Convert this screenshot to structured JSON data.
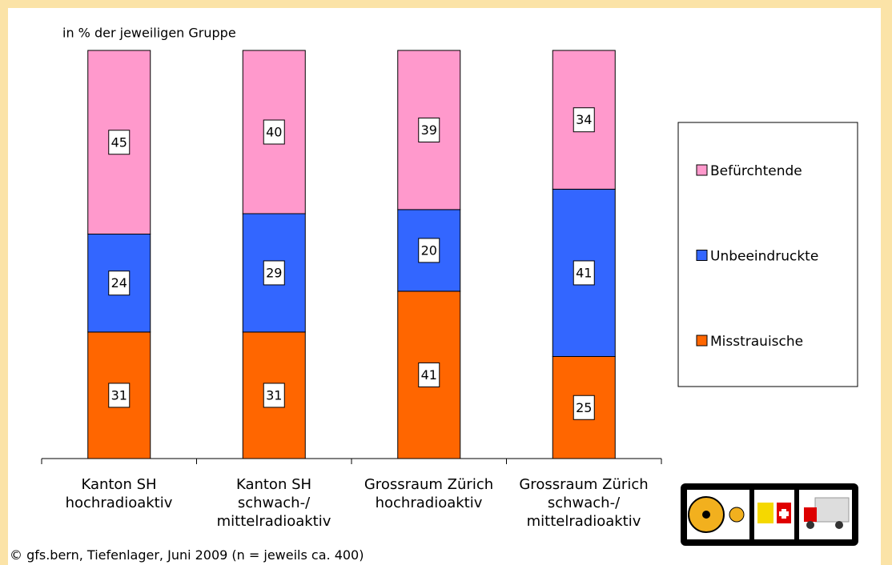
{
  "chart_data": {
    "type": "stacked_bar",
    "subtitle": "in % der jeweiligen Gruppe",
    "categories": [
      "Kanton SH\nhochradioaktiv",
      "Kanton SH\nschwach-/\nmittelradioaktiv",
      "Grossraum Zürich\nhochradioaktiv",
      "Grossraum Zürich\nschwach-/\nmittelradioaktiv"
    ],
    "series": [
      {
        "name": "Misstrauische",
        "color": "#ff6600",
        "values": [
          31,
          31,
          41,
          25
        ]
      },
      {
        "name": "Unbeeindruckte",
        "color": "#3366ff",
        "values": [
          24,
          29,
          20,
          41
        ]
      },
      {
        "name": "Befürchtende",
        "color": "#ff99cc",
        "values": [
          45,
          40,
          39,
          34
        ]
      }
    ],
    "ylim": [
      0,
      100
    ],
    "legend": "right",
    "footnote": "© gfs.bern, Tiefenlager, Juni 2009 (n = jeweils ca. 400)"
  }
}
